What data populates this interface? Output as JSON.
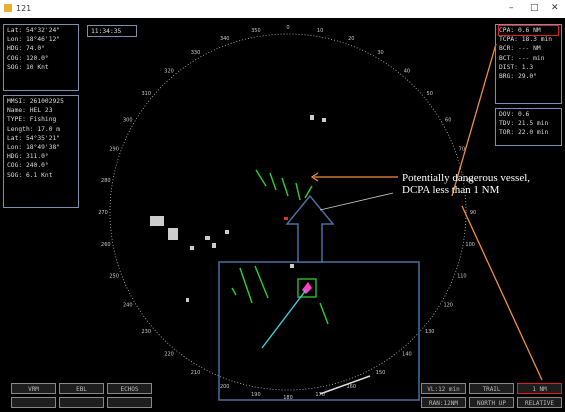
{
  "window": {
    "title": "121",
    "controls": [
      "–",
      "□",
      "✕"
    ]
  },
  "own_ship": {
    "time": "11:34:35",
    "lines": [
      "Lat: 54°32'24\"",
      "Lon: 18°46'12\"",
      "HDG: 74.0°",
      "COG: 120.0°",
      "SOG: 10 Knt"
    ]
  },
  "target": {
    "lines": [
      "MMSI: 261002925",
      "Name: HEL 23",
      "TYPE: Fishing",
      "Length: 17.0 m",
      "Lat: 54°35'21\"",
      "Lon: 18°49'38\"",
      "HDG: 311.0°",
      "COG: 240.0°",
      "SOG: 6.1 Knt"
    ]
  },
  "cpa_panel": {
    "lines": [
      "CPA: 0.6 NM",
      "TCPA: 18.3 min",
      "BCR: --- NM",
      "BCT: --- min",
      "DIST: 1.3",
      "BRG: 29.0°"
    ]
  },
  "dov_panel": {
    "lines": [
      "DOV: 0.6",
      "TDV: 21.5 min",
      "TOR: 22.0 min"
    ]
  },
  "annotation": {
    "lines": [
      "Potentially dangerous vessel,",
      "DCPA less than 1 NM"
    ]
  },
  "bearing_labels": [
    "0",
    "10",
    "20",
    "30",
    "40",
    "50",
    "60",
    "70",
    "80",
    "90",
    "100",
    "110",
    "120",
    "130",
    "140",
    "150",
    "160",
    "170",
    "180",
    "190",
    "200",
    "210",
    "220",
    "230",
    "240",
    "250",
    "260",
    "270",
    "280",
    "290",
    "300",
    "310",
    "320",
    "330",
    "340",
    "350"
  ],
  "left_buttons": [
    "VRM",
    "EBL",
    "ECHOS"
  ],
  "right_buttons": [
    [
      "VL:12 min",
      "TRAIL",
      "1 NM"
    ],
    [
      "RAN:12NM",
      "NORTH UP",
      "RELATIVE"
    ]
  ]
}
